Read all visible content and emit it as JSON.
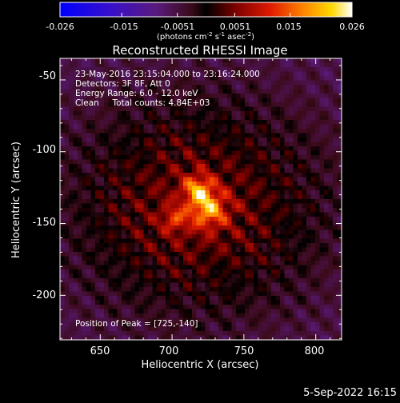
{
  "colorbar": {
    "ticks": [
      "-0.026",
      "-0.015",
      "-0.0051",
      "0.0051",
      "0.015",
      "0.026"
    ],
    "unit_label": "(photons cm",
    "unit_sup1": "-2",
    "unit_mid": " s",
    "unit_sup2": "-1",
    "unit_mid2": " asec",
    "unit_sup3": "-2",
    "unit_end": ")"
  },
  "chart_data": {
    "type": "heatmap",
    "title": "Reconstructed RHESSI Image",
    "xlabel": "Heliocentric X (arcsec)",
    "ylabel": "Heliocentric Y (arcsec)",
    "xlim": [
      622,
      818
    ],
    "ylim": [
      -231,
      -35
    ],
    "xticks": [
      "650",
      "700",
      "750",
      "800"
    ],
    "yticks": [
      "-50",
      "-100",
      "-150",
      "-200"
    ],
    "xtick_values": [
      650,
      700,
      750,
      800
    ],
    "ytick_values": [
      -50,
      -100,
      -150,
      -200
    ],
    "colorbar_range": [
      -0.026,
      0.026
    ],
    "colormap": "hot (blue-purple-red-orange-yellow-white)",
    "peak_position": [
      725,
      -140
    ],
    "annotations": [
      "23-May-2016 23:15:04.000 to 23:16:24.000",
      "Detectors: 3F 8F, Att 0",
      "Energy Range: 6.0 - 12.0 keV",
      "Clean     Total counts: 4.84E+03",
      "Position of Peak = [725,-140]"
    ]
  },
  "footer": {
    "date": "5-Sep-2022 16:15"
  }
}
